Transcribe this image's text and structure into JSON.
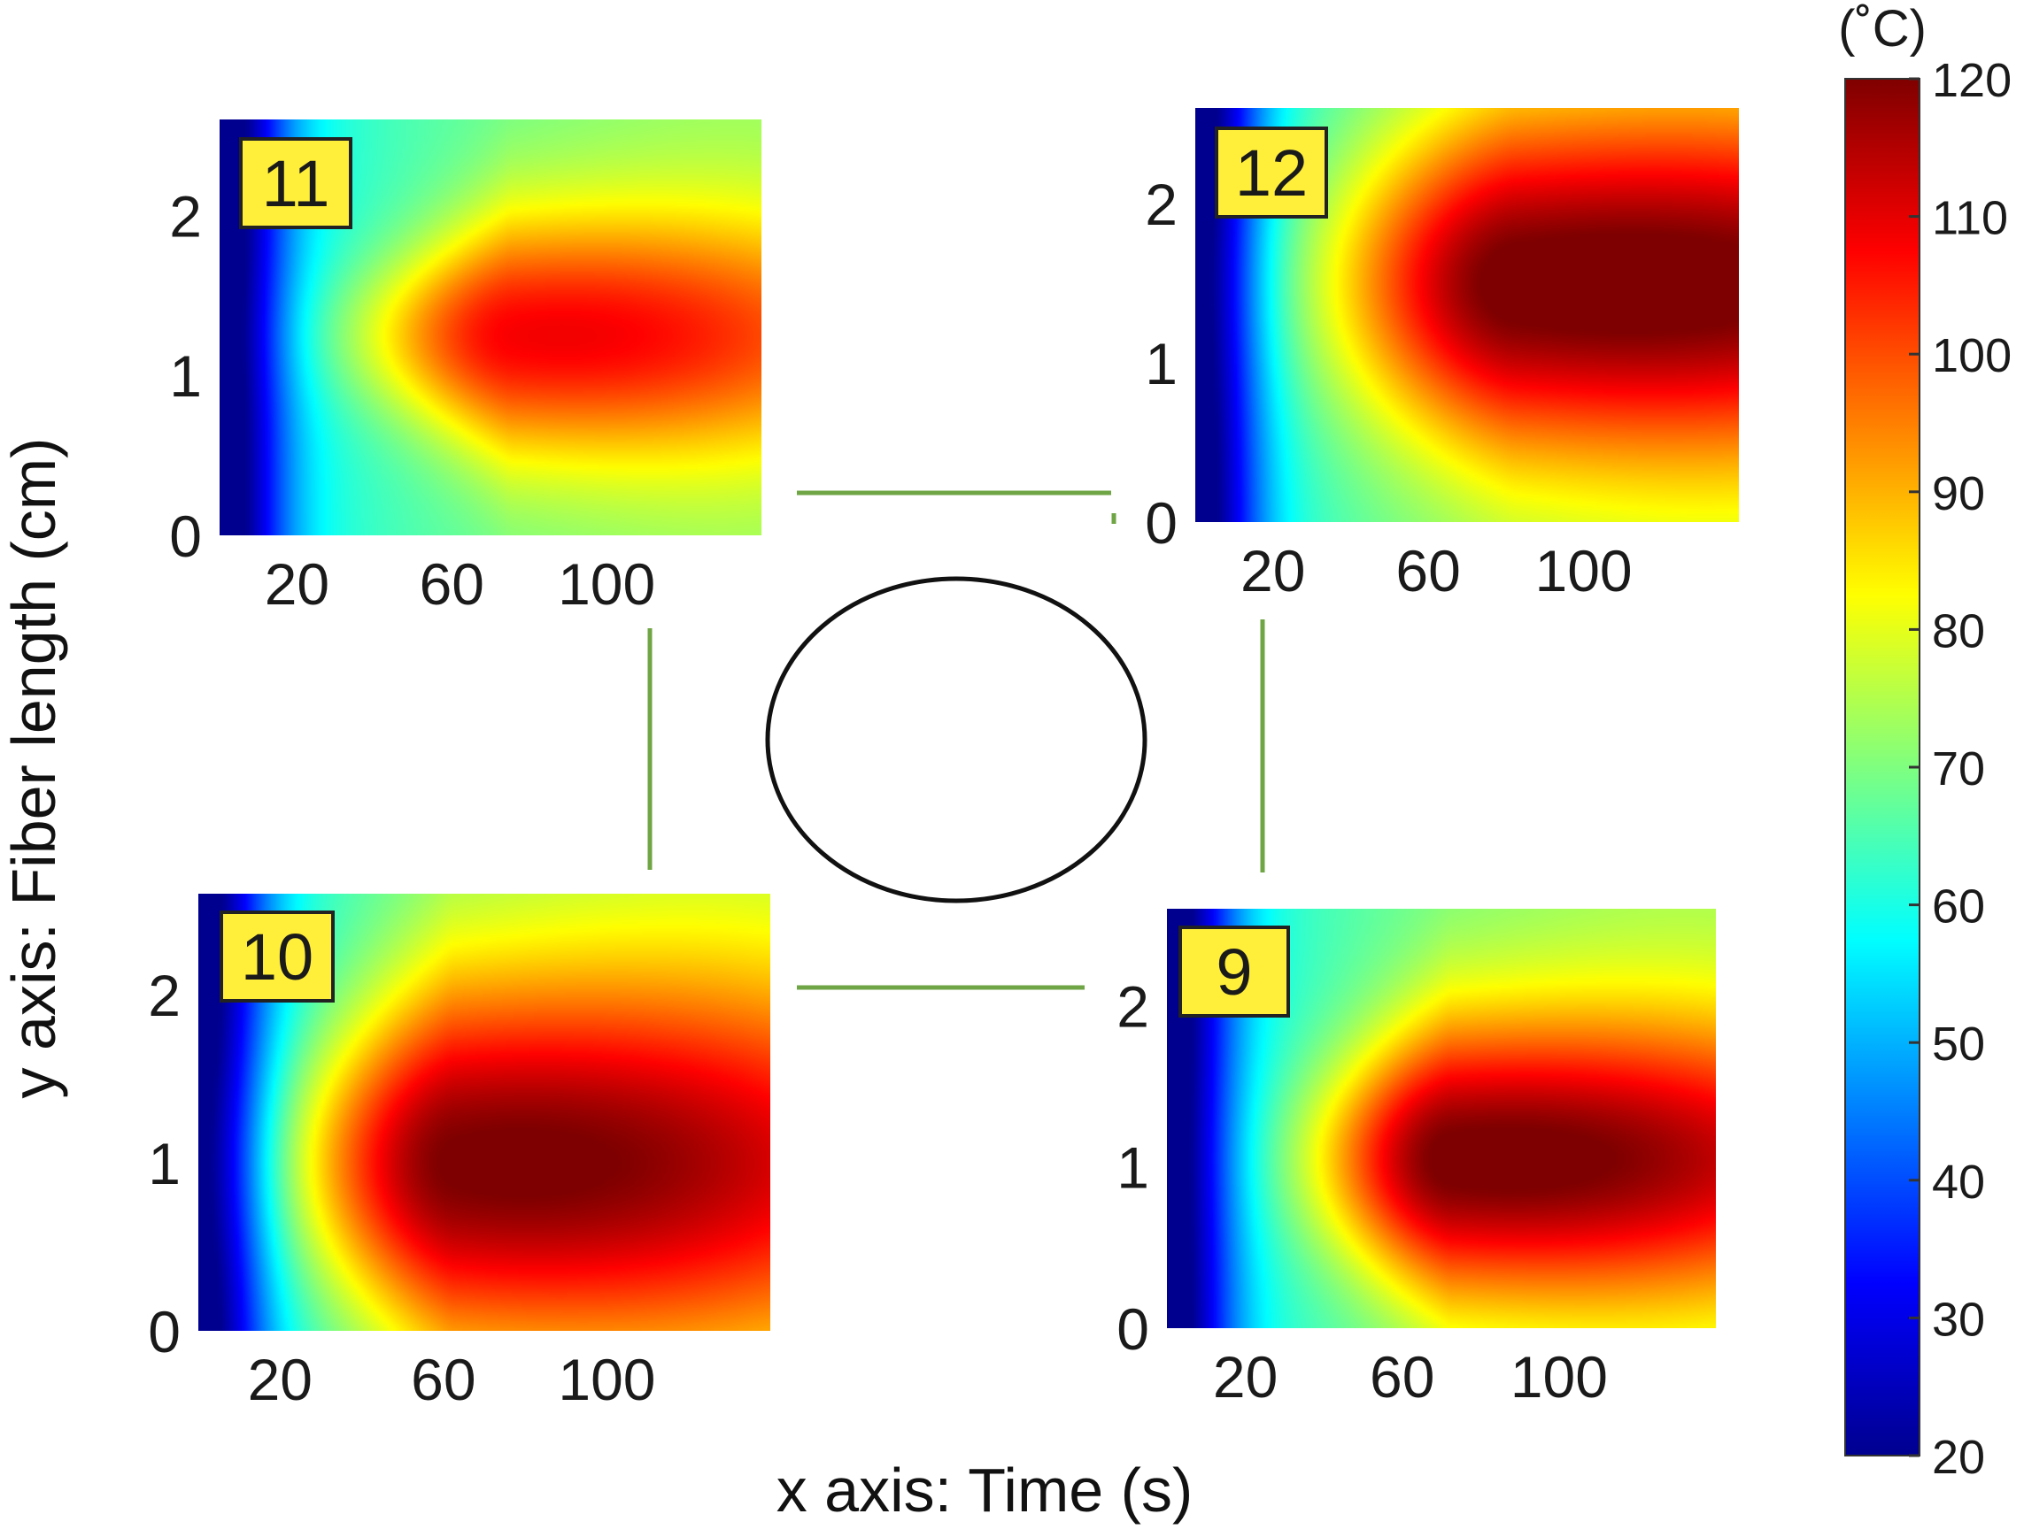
{
  "chart_data": {
    "type": "heatmap",
    "xlabel": "x axis: Time (s)",
    "ylabel": "y axis: Fiber length (cm)",
    "xticks": [
      20,
      60,
      100
    ],
    "yticks": [
      0,
      1,
      2
    ],
    "xlim": [
      0,
      140
    ],
    "ylim": [
      0,
      2.6
    ],
    "colorbar": {
      "unit": "(˚C)",
      "range": [
        20,
        120
      ],
      "ticks": [
        20,
        30,
        40,
        50,
        60,
        70,
        80,
        90,
        100,
        110,
        120
      ],
      "colormap": [
        "#00008f",
        "#0000ff",
        "#007fff",
        "#00ffff",
        "#7fff7f",
        "#ffff00",
        "#ff7f00",
        "#ff0000",
        "#7f0000"
      ]
    },
    "panels": [
      {
        "label": "11",
        "position": "top-left",
        "background": 64,
        "hot_spot": {
          "time": 75,
          "fiber": 1.25,
          "peak": 104,
          "spread_time": 48,
          "spread_fiber": 1.0,
          "extent_back": 38,
          "taper": 0.45
        }
      },
      {
        "label": "12",
        "position": "top-right",
        "background": 66,
        "hot_spot": {
          "time": 82,
          "fiber": 1.5,
          "peak": 118,
          "spread_time": 58,
          "spread_fiber": 1.4,
          "extent_back": 95,
          "taper": 0.15
        }
      },
      {
        "label": "10",
        "position": "bottom-left",
        "background": 66,
        "hot_spot": {
          "time": 62,
          "fiber": 1.0,
          "peak": 118,
          "spread_time": 48,
          "spread_fiber": 1.45,
          "extent_back": 60,
          "taper": 0.35
        }
      },
      {
        "label": "9",
        "position": "bottom-right",
        "background": 65,
        "hot_spot": {
          "time": 72,
          "fiber": 1.05,
          "peak": 118,
          "spread_time": 42,
          "spread_fiber": 1.15,
          "extent_back": 72,
          "taper": 0.35
        }
      }
    ]
  },
  "theme": {
    "connector_color": "#6fa544",
    "label_box_color": "#ffef3a",
    "ellipse_color": "#111111"
  }
}
